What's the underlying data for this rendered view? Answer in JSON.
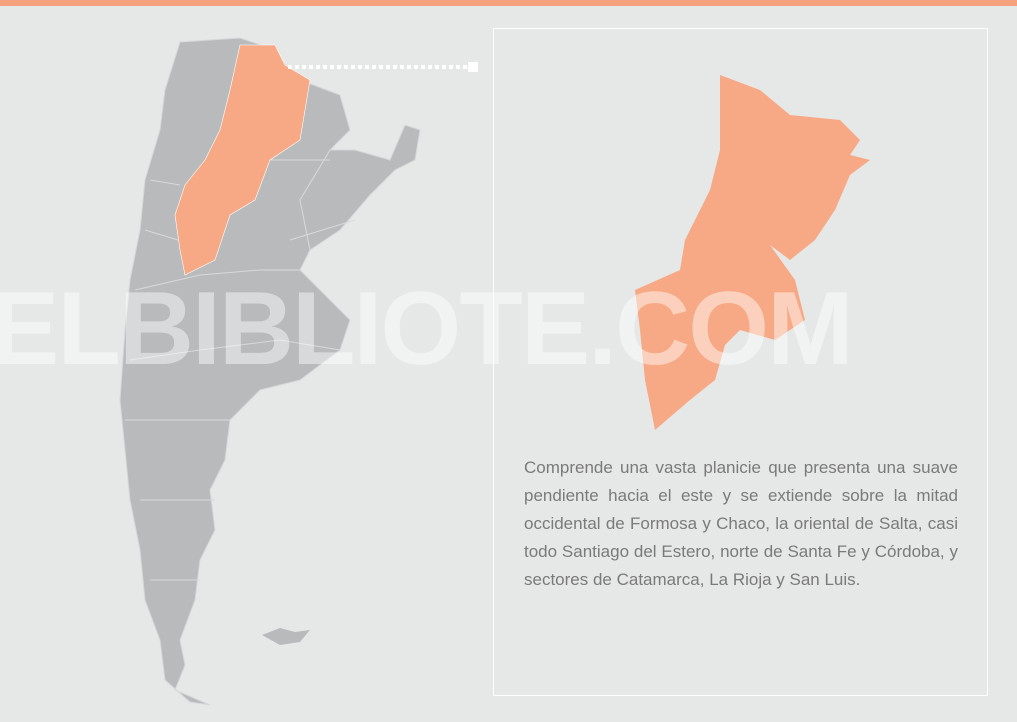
{
  "watermark": "ELBIBLIOTE.COM",
  "description": "Comprende una vasta planicie que presenta una suave pendiente hacia el este y se extiende sobre la mitad occidental de Formosa y Chaco, la oriental de Salta, casi todo Santiago del Estero, norte de Santa Fe y Córdoba, y sectores de Catamarca, La Rioja y San Luis."
}
